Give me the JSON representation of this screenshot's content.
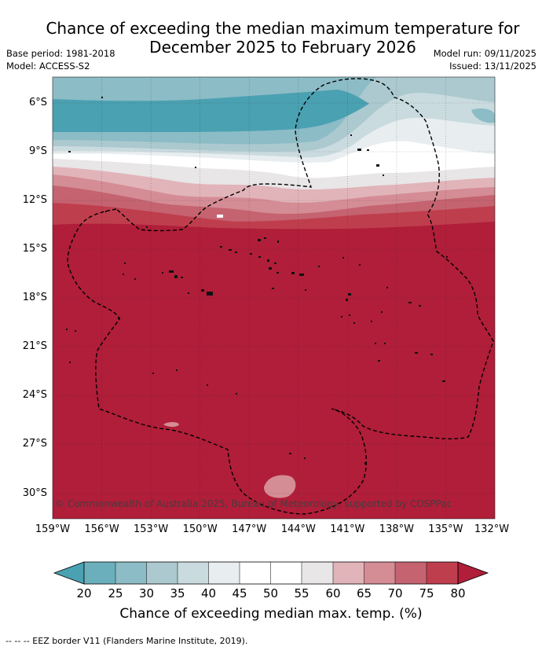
{
  "header": {
    "title_line1": "Chance of exceeding the median maximum temperature for",
    "title_line2": "December 2025 to February 2026",
    "base_period": "Base period: 1981-2018",
    "model": "Model: ACCESS-S2",
    "model_run": "Model run: 09/11/2025",
    "issued": "Issued: 13/11/2025"
  },
  "map": {
    "lat_labels": [
      "6°S",
      "9°S",
      "12°S",
      "15°S",
      "18°S",
      "21°S",
      "24°S",
      "27°S",
      "30°S"
    ],
    "lon_labels": [
      "159°W",
      "156°W",
      "153°W",
      "150°W",
      "147°W",
      "144°W",
      "141°W",
      "138°W",
      "135°W",
      "132°W"
    ],
    "copyright": "© Commonwealth of Australia 2025, Bureau of Meteorology, supported by COSPPac",
    "colors": {
      "below_20": "#4aa1b2",
      "c20_25": "#6cafbc",
      "c25_30": "#8cbcc6",
      "c30_35": "#abc9cf",
      "c35_40": "#cadbdf",
      "c40_45": "#e8eef0",
      "c45_55": "#ffffff",
      "c55_60": "#e8e6e7",
      "c60_65": "#e1b4ba",
      "c65_70": "#d48c95",
      "c70_75": "#c56370",
      "c75_80": "#bf3e4e",
      "above_80": "#b01e39"
    }
  },
  "colorbar": {
    "ticks": [
      "20",
      "25",
      "30",
      "35",
      "40",
      "45",
      "50",
      "55",
      "60",
      "65",
      "70",
      "75",
      "80"
    ],
    "title": "Chance of exceeding median max. temp. (%)"
  },
  "footnote": "--  --  -- EEZ border V11 (Flanders Marine Institute, 2019)."
}
